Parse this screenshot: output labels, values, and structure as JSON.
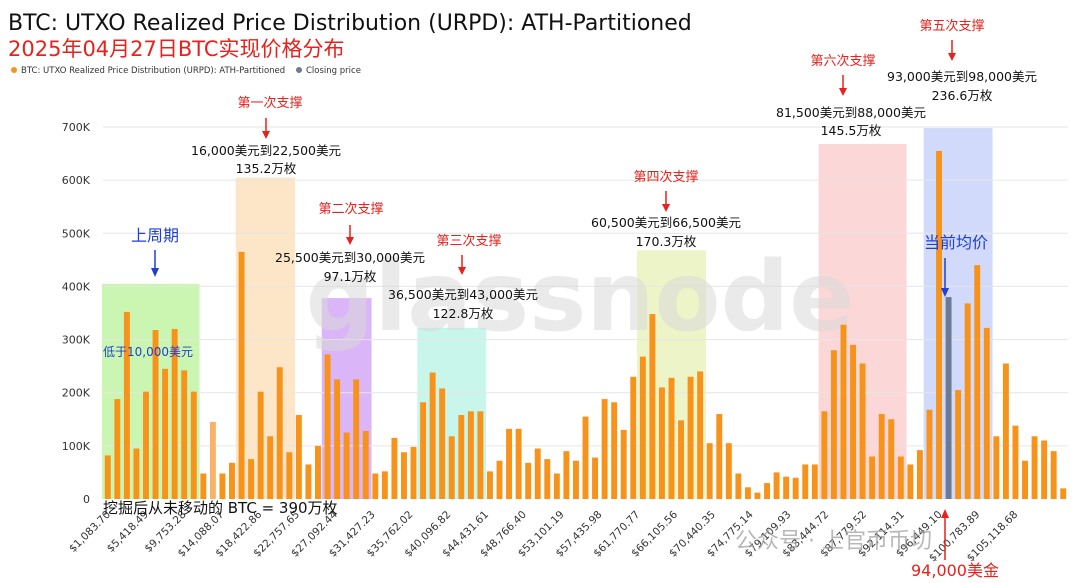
{
  "header": {
    "title": "BTC: UTXO Realized Price Distribution (URPD): ATH-Partitioned",
    "subtitle": "2025年04月27日BTC实现价格分布"
  },
  "legend": {
    "series_label": "BTC: UTXO Realized Price Distribution (URPD): ATH-Partitioned",
    "closing_label": "Closing price"
  },
  "watermark": "glassnode",
  "colors": {
    "bar": "#f7931a",
    "bar_light": "#f9b26a",
    "closing": "#6c7a93",
    "red_text": "#e8211c",
    "blue_text": "#1f3fd6"
  },
  "chart_data": {
    "type": "bar",
    "title": "BTC: UTXO Realized Price Distribution (URPD): ATH-Partitioned",
    "ylim": [
      0,
      700000
    ],
    "y_ticks": [
      0,
      100000,
      200000,
      300000,
      400000,
      500000,
      600000,
      700000
    ],
    "y_tick_labels": [
      "0",
      "100K",
      "200K",
      "300K",
      "400K",
      "500K",
      "600K",
      "700K"
    ],
    "x_tick_labels": [
      "$1,083.70",
      "$5,418.49",
      "$9,753.28",
      "$14,088.07",
      "$18,422.86",
      "$22,757.65",
      "$27,092.44",
      "$31,427.23",
      "$35,762.02",
      "$40,096.82",
      "$44,431.61",
      "$48,766.40",
      "$53,101.19",
      "$57,435.98",
      "$61,770.77",
      "$66,105.56",
      "$70,440.35",
      "$74,775.14",
      "$79,109.93",
      "$83,444.72",
      "$87,779.52",
      "$92,114.31",
      "$96,449.10",
      "$100,783.89",
      "$105,118.68"
    ],
    "series": [
      {
        "name": "BTC: UTXO Realized Price Distribution (URPD): ATH-Partitioned",
        "values": [
          82000,
          188000,
          352000,
          95000,
          202000,
          318000,
          245000,
          320000,
          242000,
          202000,
          48000,
          145000,
          48000,
          68000,
          465000,
          75000,
          202000,
          118000,
          248000,
          88000,
          158000,
          65000,
          100000,
          272000,
          225000,
          125000,
          225000,
          128000,
          48000,
          52000,
          115000,
          88000,
          98000,
          182000,
          238000,
          208000,
          118000,
          158000,
          165000,
          165000,
          52000,
          72000,
          132000,
          132000,
          68000,
          95000,
          75000,
          48000,
          90000,
          72000,
          155000,
          78000,
          188000,
          182000,
          130000,
          230000,
          268000,
          348000,
          210000,
          228000,
          148000,
          230000,
          240000,
          105000,
          160000,
          105000,
          48000,
          22000,
          12000,
          30000,
          50000,
          42000,
          40000,
          65000,
          65000,
          165000,
          280000,
          328000,
          290000,
          255000,
          80000,
          160000,
          150000,
          80000,
          65000,
          92000,
          168000,
          655000,
          380000,
          205000,
          368000,
          440000,
          322000,
          118000,
          255000,
          138000,
          72000,
          118000,
          110000,
          90000,
          20000
        ]
      }
    ],
    "closing_price_bar_index": 88,
    "light_bar_indices": [
      11
    ]
  },
  "regions": [
    {
      "name": "last-period",
      "start": 0,
      "end": 9,
      "color": "#c2f5a3",
      "top": 405000
    },
    {
      "name": "support-1",
      "start": 14,
      "end": 19,
      "color": "#fde2bd",
      "top": 605000
    },
    {
      "name": "support-2",
      "start": 23,
      "end": 27,
      "color": "#d3a9f7",
      "top": 378000
    },
    {
      "name": "support-3",
      "start": 33,
      "end": 39,
      "color": "#bff4e6",
      "top": 322000
    },
    {
      "name": "support-4",
      "start": 56,
      "end": 62,
      "color": "#eaf2bd",
      "top": 468000
    },
    {
      "name": "support-6",
      "start": 75,
      "end": 83,
      "color": "#fbd0d0",
      "top": 668000
    },
    {
      "name": "support-5",
      "start": 86,
      "end": 92,
      "color": "#c9d4fa",
      "top": 698000
    }
  ],
  "annotations": {
    "last_period": {
      "label": "上周期",
      "sub": "低于10,000美元"
    },
    "support_1": {
      "label": "第一次支撑",
      "range": "16,000美元到22,500美元",
      "amount": "135.2万枚"
    },
    "support_2": {
      "label": "第二次支撑",
      "range": "25,500美元到30,000美元",
      "amount": "97.1万枚"
    },
    "support_3": {
      "label": "第三次支撑",
      "range": "36,500美元到43,000美元",
      "amount": "122.8万枚"
    },
    "support_4": {
      "label": "第四次支撑",
      "range": "60,500美元到66,500美元",
      "amount": "170.3万枚"
    },
    "support_5": {
      "label": "第五次支撑",
      "range": "93,000美元到98,000美元",
      "amount": "236.6万枚"
    },
    "support_6": {
      "label": "第六次支撑",
      "range": "81,500美元到88,000美元",
      "amount": "145.5万枚"
    },
    "current_avg": {
      "label": "当前均价"
    },
    "price_94000": {
      "label": "94,000美金"
    },
    "unmoved": {
      "label": "挖掘后从未移动的 BTC = 390万枚"
    }
  },
  "wechat_watermark": "公众号 · 上官币币切"
}
